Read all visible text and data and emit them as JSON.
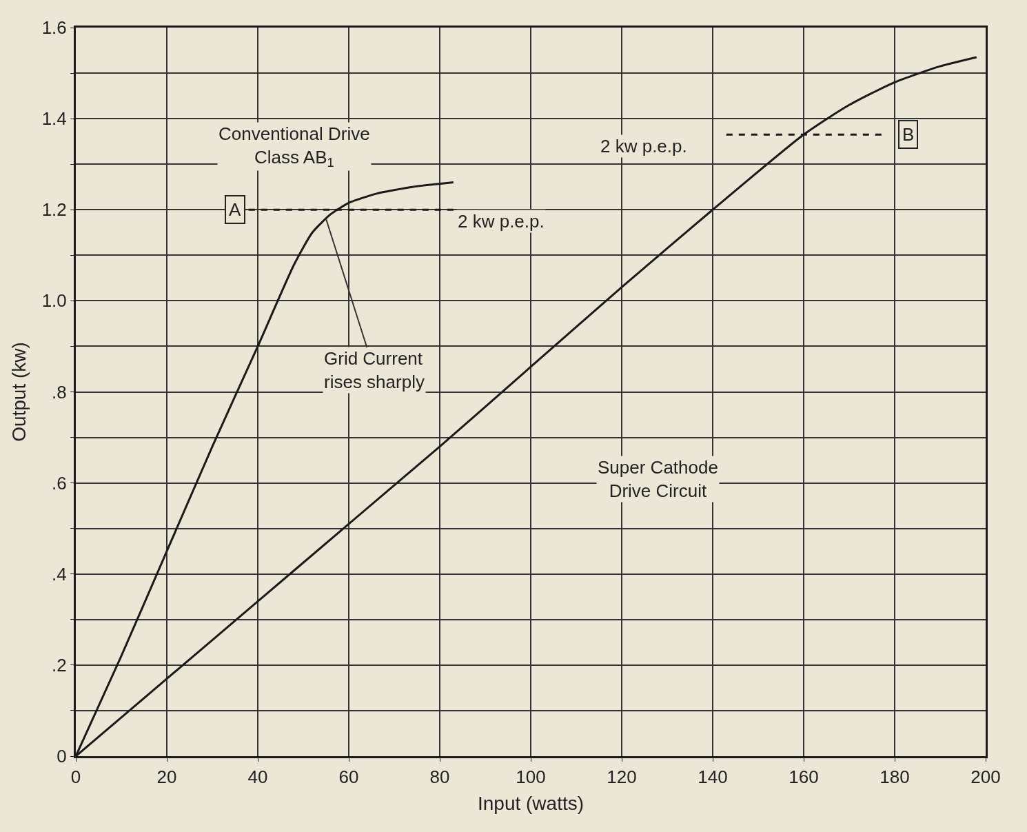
{
  "chart_data": {
    "type": "line",
    "xlabel": "Input (watts)",
    "ylabel": "Output (kw)",
    "xlim": [
      0,
      200
    ],
    "xticks": [
      0,
      20,
      40,
      60,
      80,
      100,
      120,
      140,
      160,
      180,
      200
    ],
    "ylim": [
      0,
      1.6
    ],
    "yticks": [
      0,
      {
        "value": 0.1,
        "label": null
      },
      {
        "value": 0.2,
        "label": ".2"
      },
      {
        "value": 0.3,
        "label": null
      },
      {
        "value": 0.4,
        "label": ".4"
      },
      {
        "value": 0.5,
        "label": null
      },
      {
        "value": 0.6,
        "label": ".6"
      },
      {
        "value": 0.7,
        "label": null
      },
      {
        "value": 0.8,
        "label": ".8"
      },
      {
        "value": 0.9,
        "label": null
      },
      {
        "value": 1.0,
        "label": "1.0"
      },
      {
        "value": 1.1,
        "label": null
      },
      {
        "value": 1.2,
        "label": "1.2"
      },
      {
        "value": 1.3,
        "label": null
      },
      {
        "value": 1.4,
        "label": "1.4"
      },
      {
        "value": 1.5,
        "label": null
      },
      {
        "value": 1.6,
        "label": "1.6"
      }
    ],
    "grid": true,
    "marker": "none",
    "series": [
      {
        "color": "#1a1a1a",
        "line_style": "solid",
        "x": [
          0,
          10,
          20,
          30,
          40,
          48,
          52,
          56,
          60,
          66,
          74,
          83
        ],
        "values": [
          0,
          0.22,
          0.45,
          0.68,
          0.9,
          1.08,
          1.15,
          1.19,
          1.215,
          1.235,
          1.25,
          1.26
        ]
      },
      {
        "color": "#1a1a1a",
        "line_style": "solid",
        "x": [
          0,
          20,
          40,
          60,
          80,
          100,
          120,
          140,
          160,
          170,
          180,
          190,
          198
        ],
        "values": [
          0,
          0.17,
          0.34,
          0.51,
          0.68,
          0.855,
          1.03,
          1.2,
          1.365,
          1.43,
          1.48,
          1.515,
          1.535
        ]
      },
      {
        "color": "#1a1a1a",
        "line_style": "dashed",
        "x": [
          38,
          83
        ],
        "values": [
          1.2,
          1.2
        ]
      },
      {
        "color": "#1a1a1a",
        "line_style": "dashed",
        "x": [
          143,
          178
        ],
        "values": [
          1.365,
          1.365
        ]
      }
    ],
    "annotations": [
      "Conventional Drive\nClass AB$_{1}$",
      "Super Cathode\nDrive Circuit",
      {
        "text": "Grid Current\nrises sharply",
        "x": 55,
        "y": 1.18
      },
      {
        "text": "A",
        "x": 35,
        "y": 1.2
      },
      "2 kw p.e.p.",
      {
        "text": "B",
        "x": 183,
        "y": 1.365
      },
      "2 kw p.e.p."
    ]
  }
}
